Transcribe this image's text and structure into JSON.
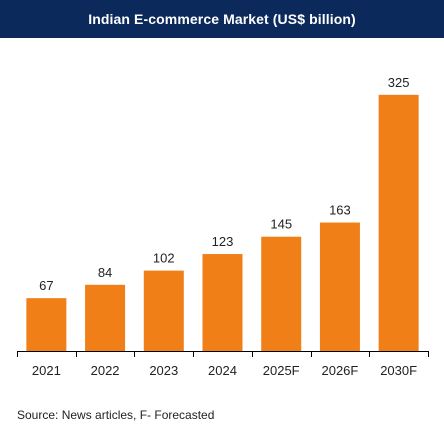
{
  "colors": {
    "title_background": "#0b2a5b",
    "title_text": "#ffffff",
    "bar": "#f07f17",
    "axis": "#000000",
    "label_text": "#222222"
  },
  "chart_data": {
    "type": "bar",
    "title": "Indian E-commerce Market (US$ billion)",
    "categories": [
      "2021",
      "2022",
      "2023",
      "2024",
      "2025F",
      "2026F",
      "2030F"
    ],
    "values": [
      67,
      84,
      102,
      123,
      145,
      163,
      325
    ],
    "ylim": [
      0,
      340
    ],
    "xlabel": "",
    "ylabel": "",
    "grid": false,
    "legend": "none",
    "data_labels": true
  },
  "source_note": "Source: News articles, F- Forecasted"
}
